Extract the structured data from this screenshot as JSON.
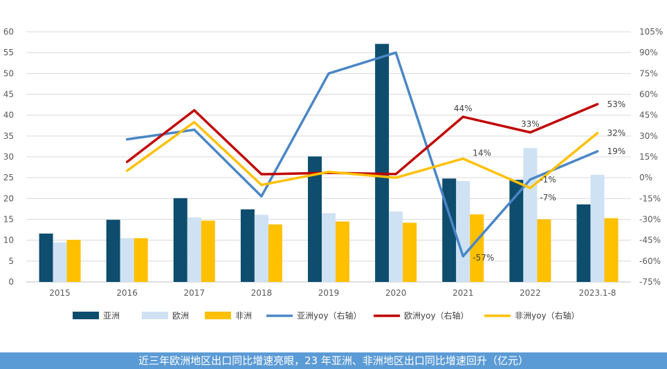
{
  "caption": "近三年欧洲地区出口同比增速亮眼，23 年亚洲、非洲地区出口同比增速回升（亿元）",
  "chart_data": {
    "type": "bar+line",
    "categories": [
      "2015",
      "2016",
      "2017",
      "2018",
      "2019",
      "2020",
      "2021",
      "2022",
      "2023.1-8"
    ],
    "left_axis": {
      "min": 0,
      "max": 60,
      "step": 5,
      "tick_labels": [
        "0",
        "5",
        "10",
        "15",
        "20",
        "25",
        "30",
        "35",
        "40",
        "45",
        "50",
        "55",
        "60"
      ]
    },
    "right_axis": {
      "min": -75,
      "max": 105,
      "step": 15,
      "tick_labels": [
        "-75%",
        "-60%",
        "-45%",
        "-30%",
        "-15%",
        "0%",
        "15%",
        "30%",
        "45%",
        "60%",
        "75%",
        "90%",
        "105%"
      ]
    },
    "grid": true,
    "legend_position": "bottom",
    "bar_series": [
      {
        "name": "亚洲",
        "color": "#0e4d6e",
        "values": [
          11.6,
          14.9,
          20.1,
          17.4,
          30.1,
          57.1,
          24.8,
          24.5,
          18.6
        ]
      },
      {
        "name": "欧洲",
        "color": "#cfe2f3",
        "values": [
          9.5,
          10.5,
          15.5,
          16.1,
          16.5,
          16.9,
          24.2,
          32.1,
          25.7
        ]
      },
      {
        "name": "非洲",
        "color": "#ffc000",
        "values": [
          10.1,
          10.5,
          14.7,
          13.8,
          14.5,
          14.2,
          16.2,
          15.0,
          15.3
        ]
      }
    ],
    "line_series": [
      {
        "name": "亚洲yoy（右轴）",
        "color": "#4a86c5",
        "values": [
          null,
          27.6,
          34.5,
          -13.4,
          75.0,
          90.0,
          -56.5,
          -1.3,
          19.0
        ]
      },
      {
        "name": "欧洲yoy（右轴）",
        "color": "#c00000",
        "values": [
          null,
          11.4,
          48.5,
          2.5,
          3.5,
          2.6,
          43.8,
          32.6,
          52.9
        ]
      },
      {
        "name": "非洲yoy（右轴）",
        "color": "#ffc000",
        "values": [
          null,
          5.0,
          40.0,
          -5.2,
          4.2,
          0.0,
          13.7,
          -7.4,
          32.1
        ]
      }
    ],
    "annotations": [
      {
        "text": "44%",
        "series": 1,
        "index": 6
      },
      {
        "text": "33%",
        "series": 1,
        "index": 7
      },
      {
        "text": "53%",
        "series": 1,
        "index": 8
      },
      {
        "text": "14%",
        "series": 2,
        "index": 6
      },
      {
        "text": "-7%",
        "series": 2,
        "index": 7
      },
      {
        "text": "32%",
        "series": 2,
        "index": 8
      },
      {
        "text": "-57%",
        "series": 0,
        "index": 6
      },
      {
        "text": "-1%",
        "series": 0,
        "index": 7
      },
      {
        "text": "19%",
        "series": 0,
        "index": 8
      }
    ]
  }
}
